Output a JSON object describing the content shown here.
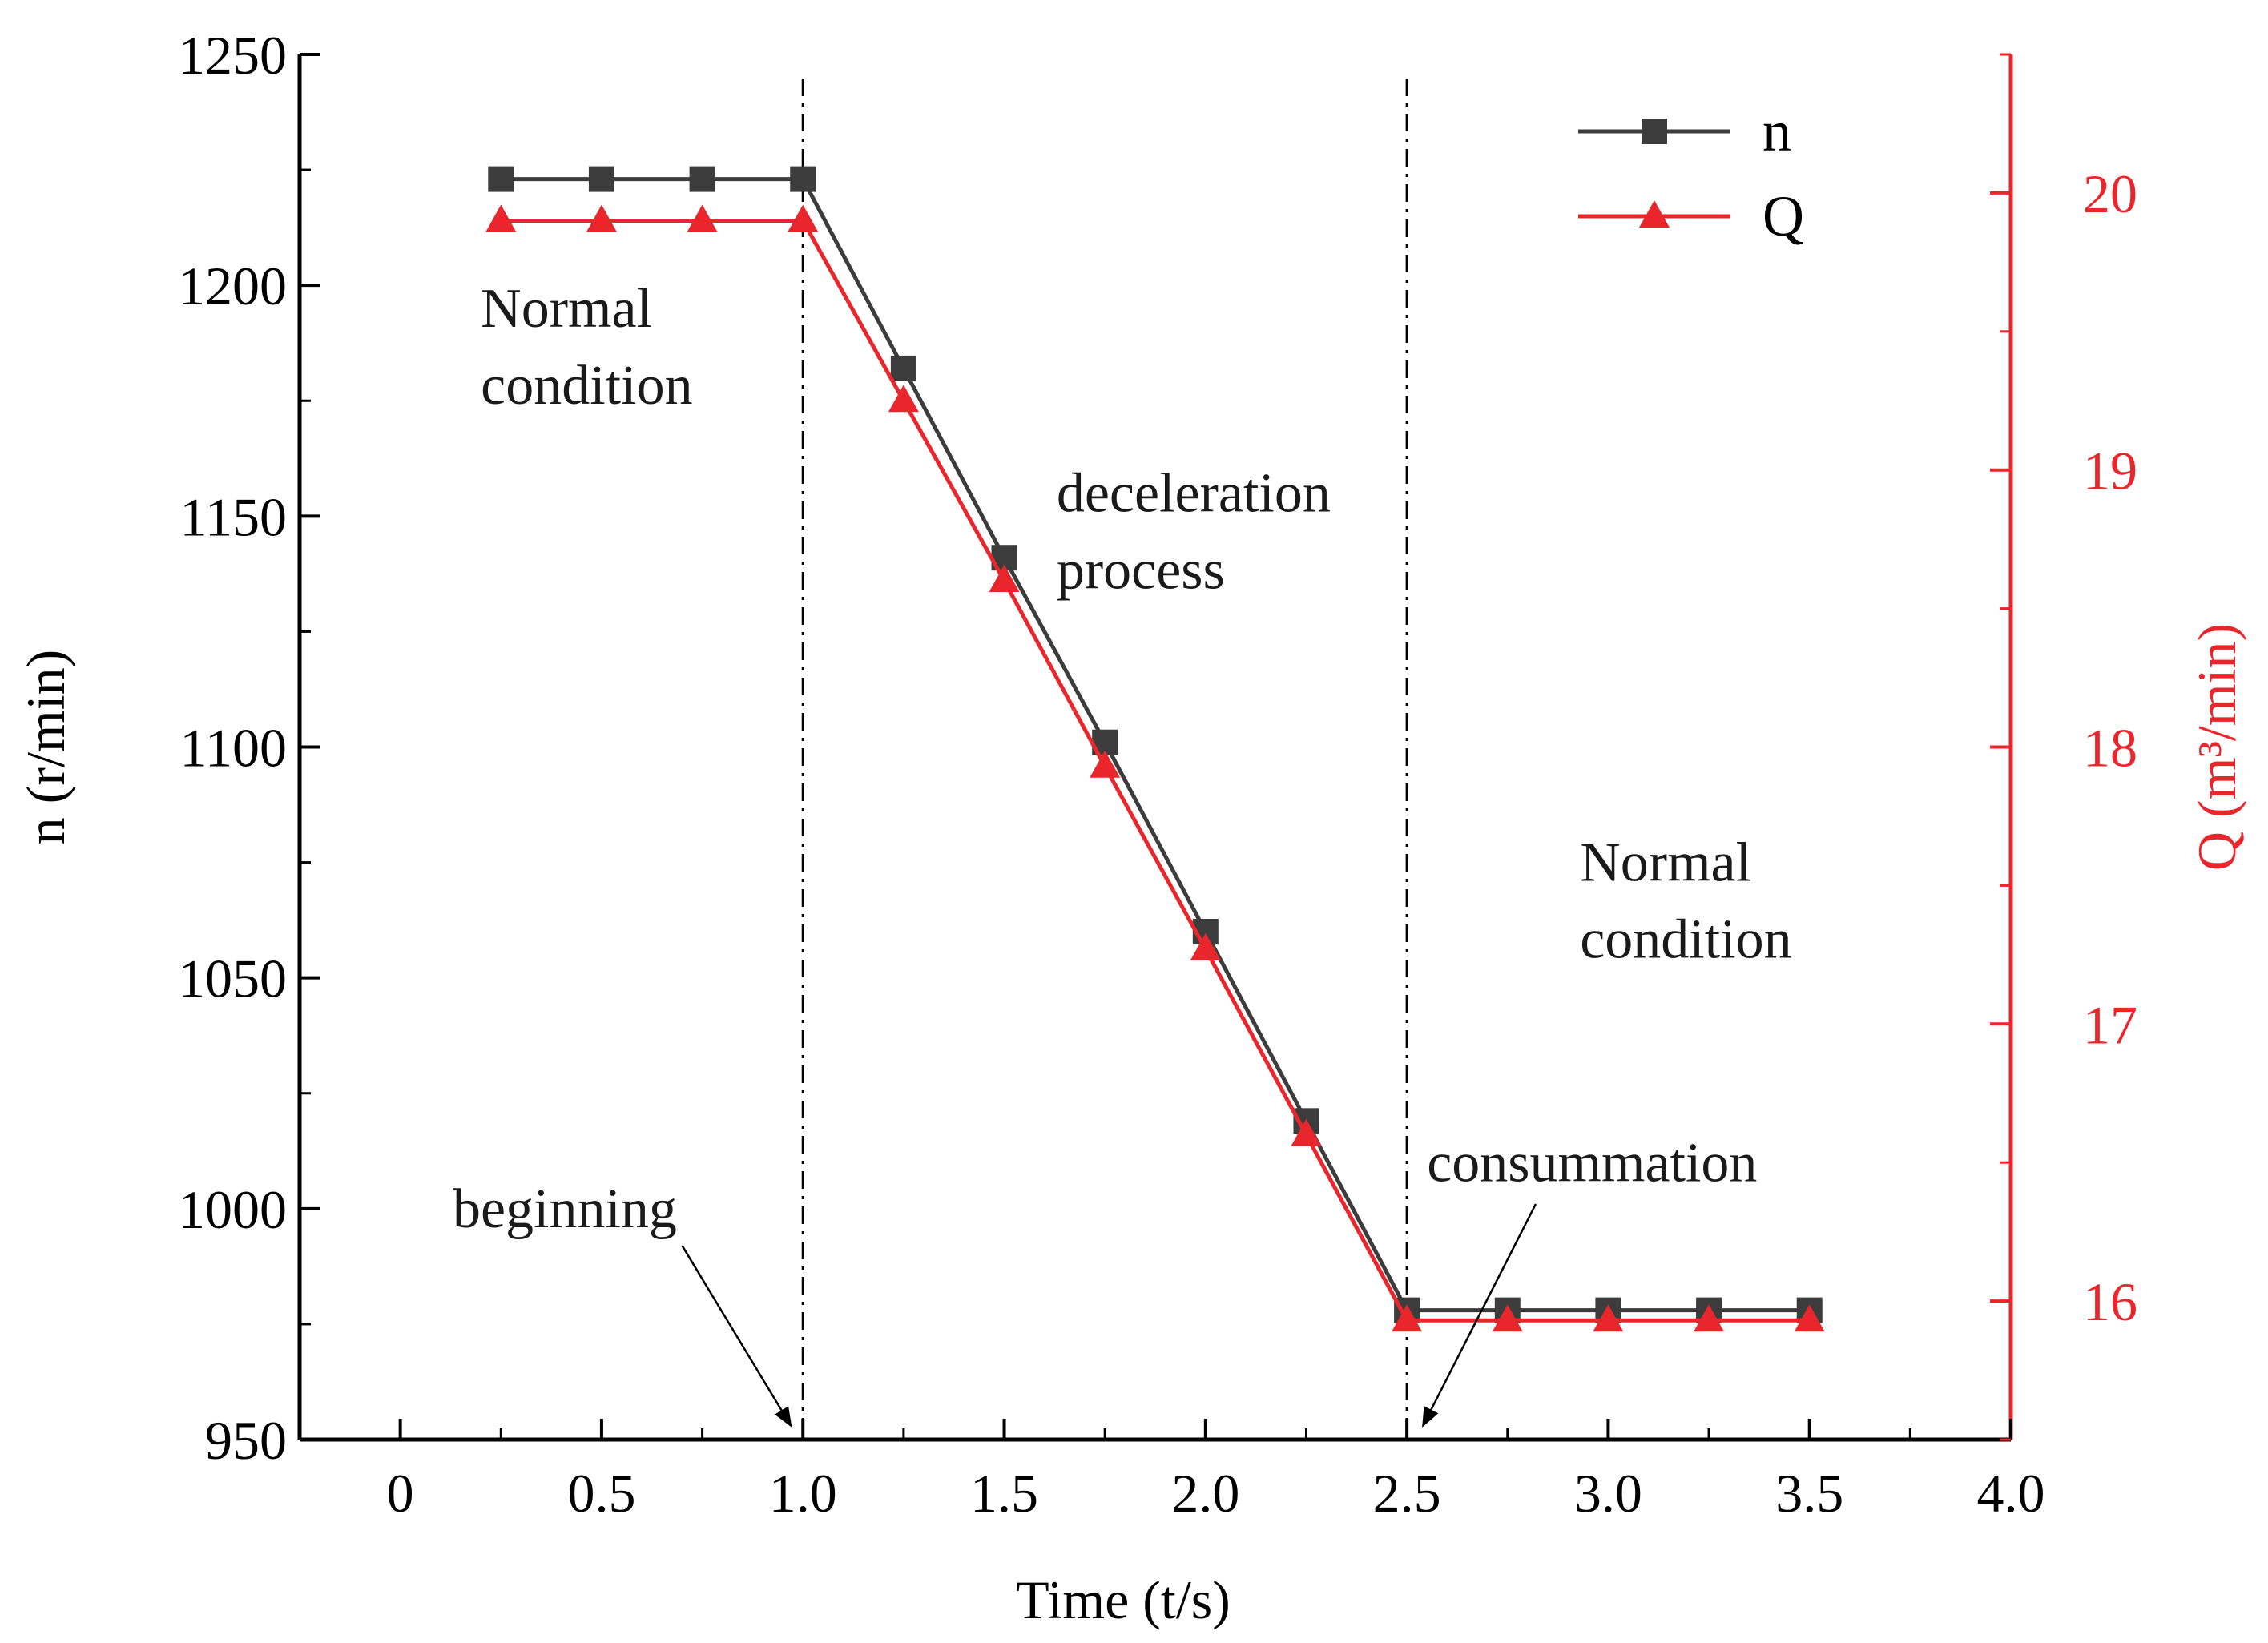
{
  "chart_data": {
    "type": "line",
    "title": "",
    "xlabel": "Time (t/s)",
    "ylabel": "n (r/min)",
    "y2label": "Q (m³/min)",
    "xlim": [
      -0.25,
      4.0
    ],
    "ylim": [
      950,
      1250
    ],
    "y2lim": [
      15.5,
      20.5
    ],
    "x_ticks": [
      0,
      0.5,
      1.0,
      1.5,
      2.0,
      2.5,
      3.0,
      3.5,
      4.0
    ],
    "x_tick_labels": [
      "0",
      "0.5",
      "1.0",
      "1.5",
      "2.0",
      "2.5",
      "3.0",
      "3.5",
      "4.0"
    ],
    "y_ticks": [
      950,
      1000,
      1050,
      1100,
      1150,
      1200,
      1250
    ],
    "y_tick_labels": [
      "950",
      "1000",
      "1050",
      "1100",
      "1150",
      "1200",
      "1250"
    ],
    "y2_ticks": [
      16,
      17,
      18,
      19,
      20
    ],
    "y2_tick_labels": [
      "16",
      "17",
      "18",
      "19",
      "20"
    ],
    "grid": false,
    "legend_position": "top-right",
    "series": [
      {
        "name": "n",
        "axis": "left",
        "color": "#3c3c3c",
        "marker": "square",
        "x": [
          0.25,
          0.5,
          0.75,
          1.0,
          1.25,
          1.5,
          1.75,
          2.0,
          2.25,
          2.5,
          2.75,
          3.0,
          3.25,
          3.5
        ],
        "values": [
          1223,
          1223,
          1223,
          1223,
          1182,
          1141,
          1101,
          1060,
          1019,
          978,
          978,
          978,
          978,
          978
        ]
      },
      {
        "name": "Q",
        "axis": "right",
        "color": "#e8262b",
        "marker": "triangle",
        "x": [
          0.25,
          0.5,
          0.75,
          1.0,
          1.25,
          1.5,
          1.75,
          2.0,
          2.25,
          2.5,
          2.75,
          3.0,
          3.25,
          3.5
        ],
        "values": [
          19.9,
          19.9,
          19.9,
          19.9,
          19.25,
          18.6,
          17.93,
          17.27,
          16.6,
          15.93,
          15.93,
          15.93,
          15.93,
          15.93
        ]
      }
    ],
    "vertical_lines": [
      1.0,
      2.5
    ],
    "annotations": [
      {
        "lines": [
          "Normal",
          "condition"
        ],
        "anchor_x": 0.2,
        "anchor_y": 1191
      },
      {
        "lines": [
          "deceleration",
          "process"
        ],
        "anchor_x": 1.63,
        "anchor_y": 1151
      },
      {
        "lines": [
          "Normal",
          "condition"
        ],
        "anchor_x": 2.93,
        "anchor_y": 1071
      },
      {
        "lines": [
          "beginning"
        ],
        "anchor_x": 0.13,
        "anchor_y": 996,
        "arrow_from": [
          0.7,
          992
        ],
        "arrow_to": [
          0.97,
          953
        ]
      },
      {
        "lines": [
          "consummation"
        ],
        "anchor_x": 2.55,
        "anchor_y": 1006,
        "arrow_from": [
          2.82,
          1001
        ],
        "arrow_to": [
          2.54,
          953
        ]
      }
    ]
  }
}
